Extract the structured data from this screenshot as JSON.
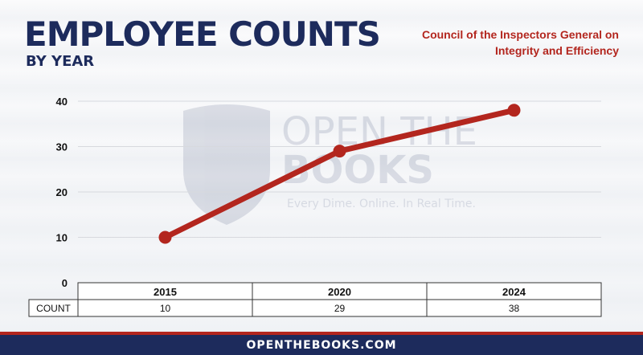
{
  "header": {
    "title": "EMPLOYEE COUNTS",
    "subtitle": "BY YEAR",
    "agency": "Council of the Inspectors General on Integrity and Efficiency"
  },
  "watermark": {
    "brand_line1": "OPEN THE",
    "brand_line2": "BOOKS",
    "tagline": "Every Dime. Online. In Real Time."
  },
  "table": {
    "row_label": "COUNT"
  },
  "footer": {
    "text": "OPENTHEBOOKS.COM"
  },
  "colors": {
    "navy": "#1d2b5c",
    "red": "#b3261e"
  },
  "chart_data": {
    "type": "line",
    "title": "EMPLOYEE COUNTS",
    "subtitle": "BY YEAR",
    "categories": [
      "2015",
      "2020",
      "2024"
    ],
    "series": [
      {
        "values": [
          10,
          29,
          38
        ],
        "color": "#b3261e"
      }
    ],
    "ylim": [
      0,
      40
    ],
    "yticks": [
      0,
      10,
      20,
      30,
      40
    ],
    "grid": true,
    "legend": "none"
  }
}
